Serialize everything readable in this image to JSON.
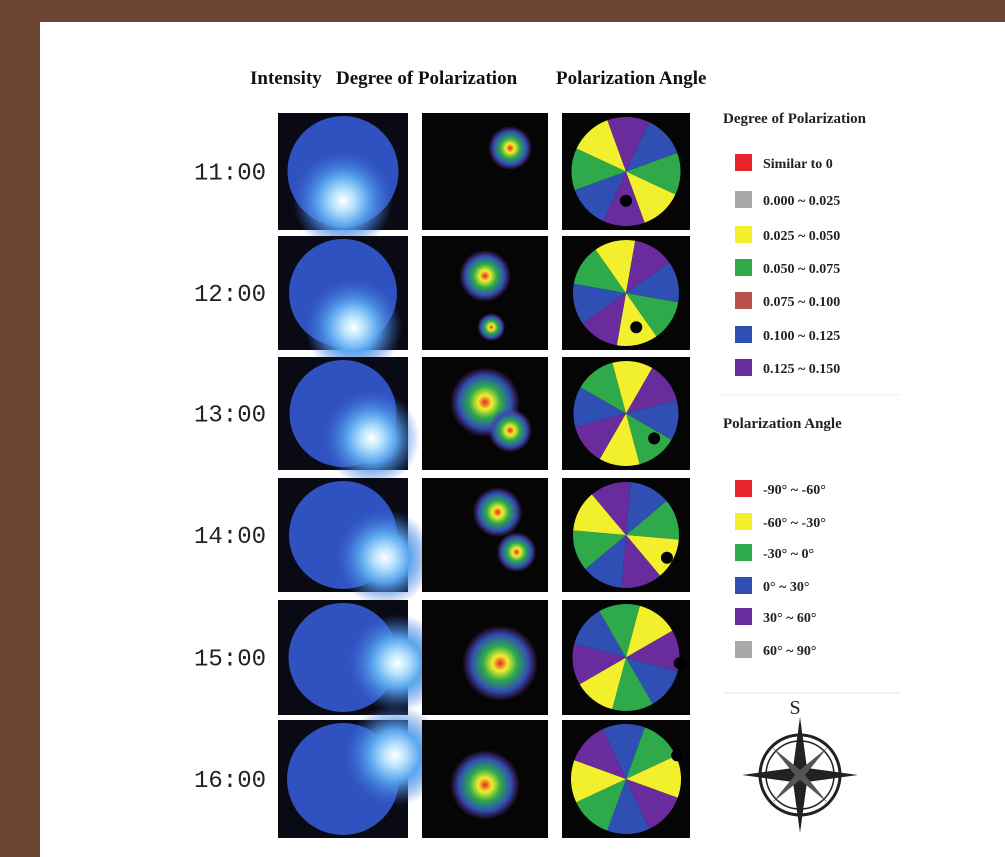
{
  "header": {
    "columns": [
      "Intensity",
      "Degree of Polarization",
      "Polarization Angle"
    ]
  },
  "rows": [
    "11:00",
    "12:00",
    "13:00",
    "14:00",
    "15:00",
    "16:00"
  ],
  "legend_dop": {
    "title": "Degree of Polarization",
    "items": [
      {
        "label": "Similar to 0",
        "color": "#e8232a"
      },
      {
        "label": "0.000 ~ 0.025",
        "color": "#a9a9a9"
      },
      {
        "label": "0.025 ~ 0.050",
        "color": "#f2ef2c"
      },
      {
        "label": "0.050 ~ 0.075",
        "color": "#2eaa4a"
      },
      {
        "label": "0.075 ~ 0.100",
        "color": "#b8514a"
      },
      {
        "label": "0.100 ~ 0.125",
        "color": "#2f4fb4"
      },
      {
        "label": "0.125 ~ 0.150",
        "color": "#6a2c9c"
      }
    ]
  },
  "legend_angle": {
    "title": "Polarization Angle",
    "items": [
      {
        "label": "-90° ~ -60°",
        "color": "#e8232a"
      },
      {
        "label": "-60° ~ -30°",
        "color": "#f2ef2c"
      },
      {
        "label": "-30° ~ 0°",
        "color": "#2eaa4a"
      },
      {
        "label": "0° ~ 30°",
        "color": "#2f4fb4"
      },
      {
        "label": "30° ~ 60°",
        "color": "#6a2c9c"
      },
      {
        "label": "60° ~ 90°",
        "color": "#a9a9a9"
      }
    ]
  },
  "compass": {
    "label": "S"
  }
}
